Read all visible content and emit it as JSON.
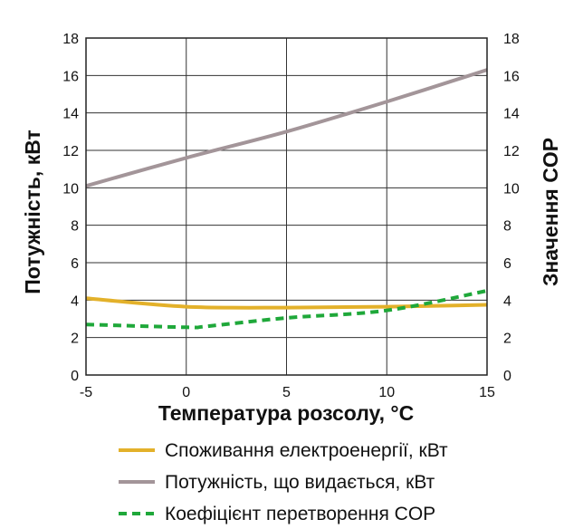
{
  "chart_data": {
    "type": "line",
    "xlabel": "Температура розсолу, °C",
    "ylabel": "Потужність, кВт",
    "y2label": "Значення COP",
    "xlim": [
      -5,
      15
    ],
    "ylim": [
      0,
      18
    ],
    "y2lim": [
      0,
      18
    ],
    "xticks": [
      "-5",
      "0",
      "5",
      "10",
      "15"
    ],
    "yticks": [
      "0",
      "2",
      "4",
      "6",
      "8",
      "10",
      "12",
      "14",
      "16",
      "18"
    ],
    "y2ticks": [
      "0",
      "2",
      "4",
      "6",
      "8",
      "10",
      "12",
      "14",
      "16",
      "18"
    ],
    "grid": true,
    "legend_position": "bottom",
    "series": [
      {
        "name": "Споживання електроенергії, кВт",
        "color": "#e3b12a",
        "style": "solid",
        "axis": "left",
        "x": [
          -5,
          0,
          5,
          10,
          15
        ],
        "y": [
          4.1,
          3.65,
          3.6,
          3.65,
          3.75
        ]
      },
      {
        "name": "Потужність, що видається, кВт",
        "color": "#a39599",
        "style": "solid",
        "axis": "left",
        "x": [
          -5,
          0,
          5,
          10,
          15
        ],
        "y": [
          10.1,
          11.6,
          13.0,
          14.6,
          16.3
        ]
      },
      {
        "name": "Коефіцієнт перетворення COP",
        "color": "#1fa83a",
        "style": "dashed",
        "axis": "right",
        "x": [
          -5,
          0,
          1,
          5,
          10,
          15
        ],
        "y": [
          2.7,
          2.55,
          2.6,
          3.05,
          3.45,
          4.5
        ]
      }
    ]
  }
}
